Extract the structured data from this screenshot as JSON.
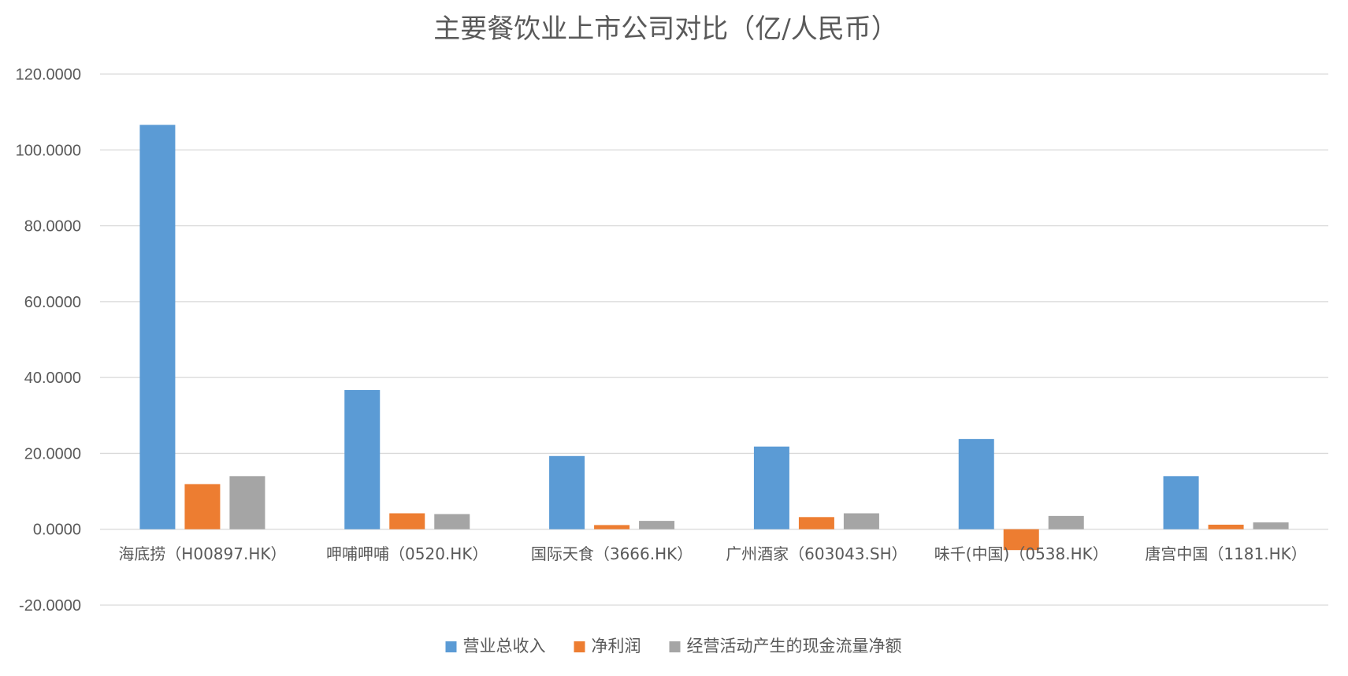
{
  "chart_data": {
    "type": "bar",
    "title": "主要餐饮业上市公司对比（亿/人民币）",
    "xlabel": "",
    "ylabel": "",
    "ylim": [
      -20,
      120
    ],
    "yticks": [
      -20,
      0,
      20,
      40,
      60,
      80,
      100,
      120
    ],
    "ytick_labels": [
      "-20.0000",
      "0.0000",
      "20.0000",
      "40.0000",
      "60.0000",
      "80.0000",
      "100.0000",
      "120.0000"
    ],
    "grid": true,
    "legend_position": "bottom",
    "categories": [
      "海底捞（H00897.HK）",
      "呷哺呷哺（0520.HK）",
      "国际天食（3666.HK）",
      "广州酒家（603043.SH）",
      "味千(中国)（0538.HK）",
      "唐宫中国（1181.HK）"
    ],
    "series": [
      {
        "name": "营业总收入",
        "color": "#5b9bd5",
        "values": [
          106.6,
          36.7,
          19.3,
          21.8,
          23.8,
          14.0
        ]
      },
      {
        "name": "净利润",
        "color": "#ed7d31",
        "values": [
          11.9,
          4.2,
          1.1,
          3.2,
          -5.5,
          1.2
        ]
      },
      {
        "name": "经营活动产生的现金流量净额",
        "color": "#a5a5a5",
        "values": [
          14.0,
          4.0,
          2.2,
          4.2,
          3.5,
          1.8
        ]
      }
    ]
  }
}
